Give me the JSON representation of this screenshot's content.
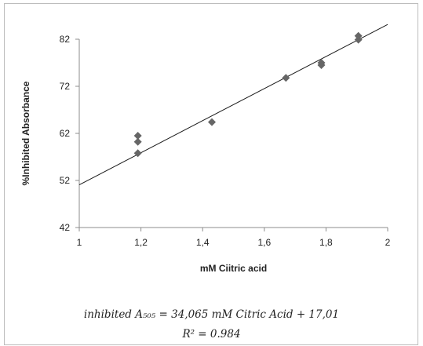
{
  "chart_data": {
    "type": "scatter",
    "title": "",
    "xlabel": "mM  Ciitric acid",
    "ylabel": "%Inhibited  Absorbance",
    "xlim": [
      1,
      2
    ],
    "ylim": [
      42,
      82
    ],
    "xticks": [
      "1",
      "1,2",
      "1,4",
      "1,6",
      "1,8",
      "2"
    ],
    "yticks": [
      "42",
      "52",
      "62",
      "72",
      "82"
    ],
    "grid": false,
    "legend": "none",
    "marker": "diamond",
    "colors": {
      "marker": "#666666",
      "line": "#1a1a1a",
      "axis": "#8c8c8c"
    },
    "series": [
      {
        "values": [
          {
            "x": 1.19,
            "y": 61.5
          },
          {
            "x": 1.19,
            "y": 60.2
          },
          {
            "x": 1.19,
            "y": 57.8
          },
          {
            "x": 1.43,
            "y": 64.4
          },
          {
            "x": 1.67,
            "y": 73.8
          },
          {
            "x": 1.785,
            "y": 76.5
          },
          {
            "x": 1.785,
            "y": 77.0
          },
          {
            "x": 1.905,
            "y": 81.9
          },
          {
            "x": 1.905,
            "y": 82.7
          }
        ]
      }
    ],
    "trendline": {
      "slope": 34.065,
      "intercept": 17.01
    }
  },
  "equation_line1": "inhibited A₅₀₅ = 34,065 mM Citric Acid  + 17,01",
  "equation_line2": "R² = 0.984"
}
